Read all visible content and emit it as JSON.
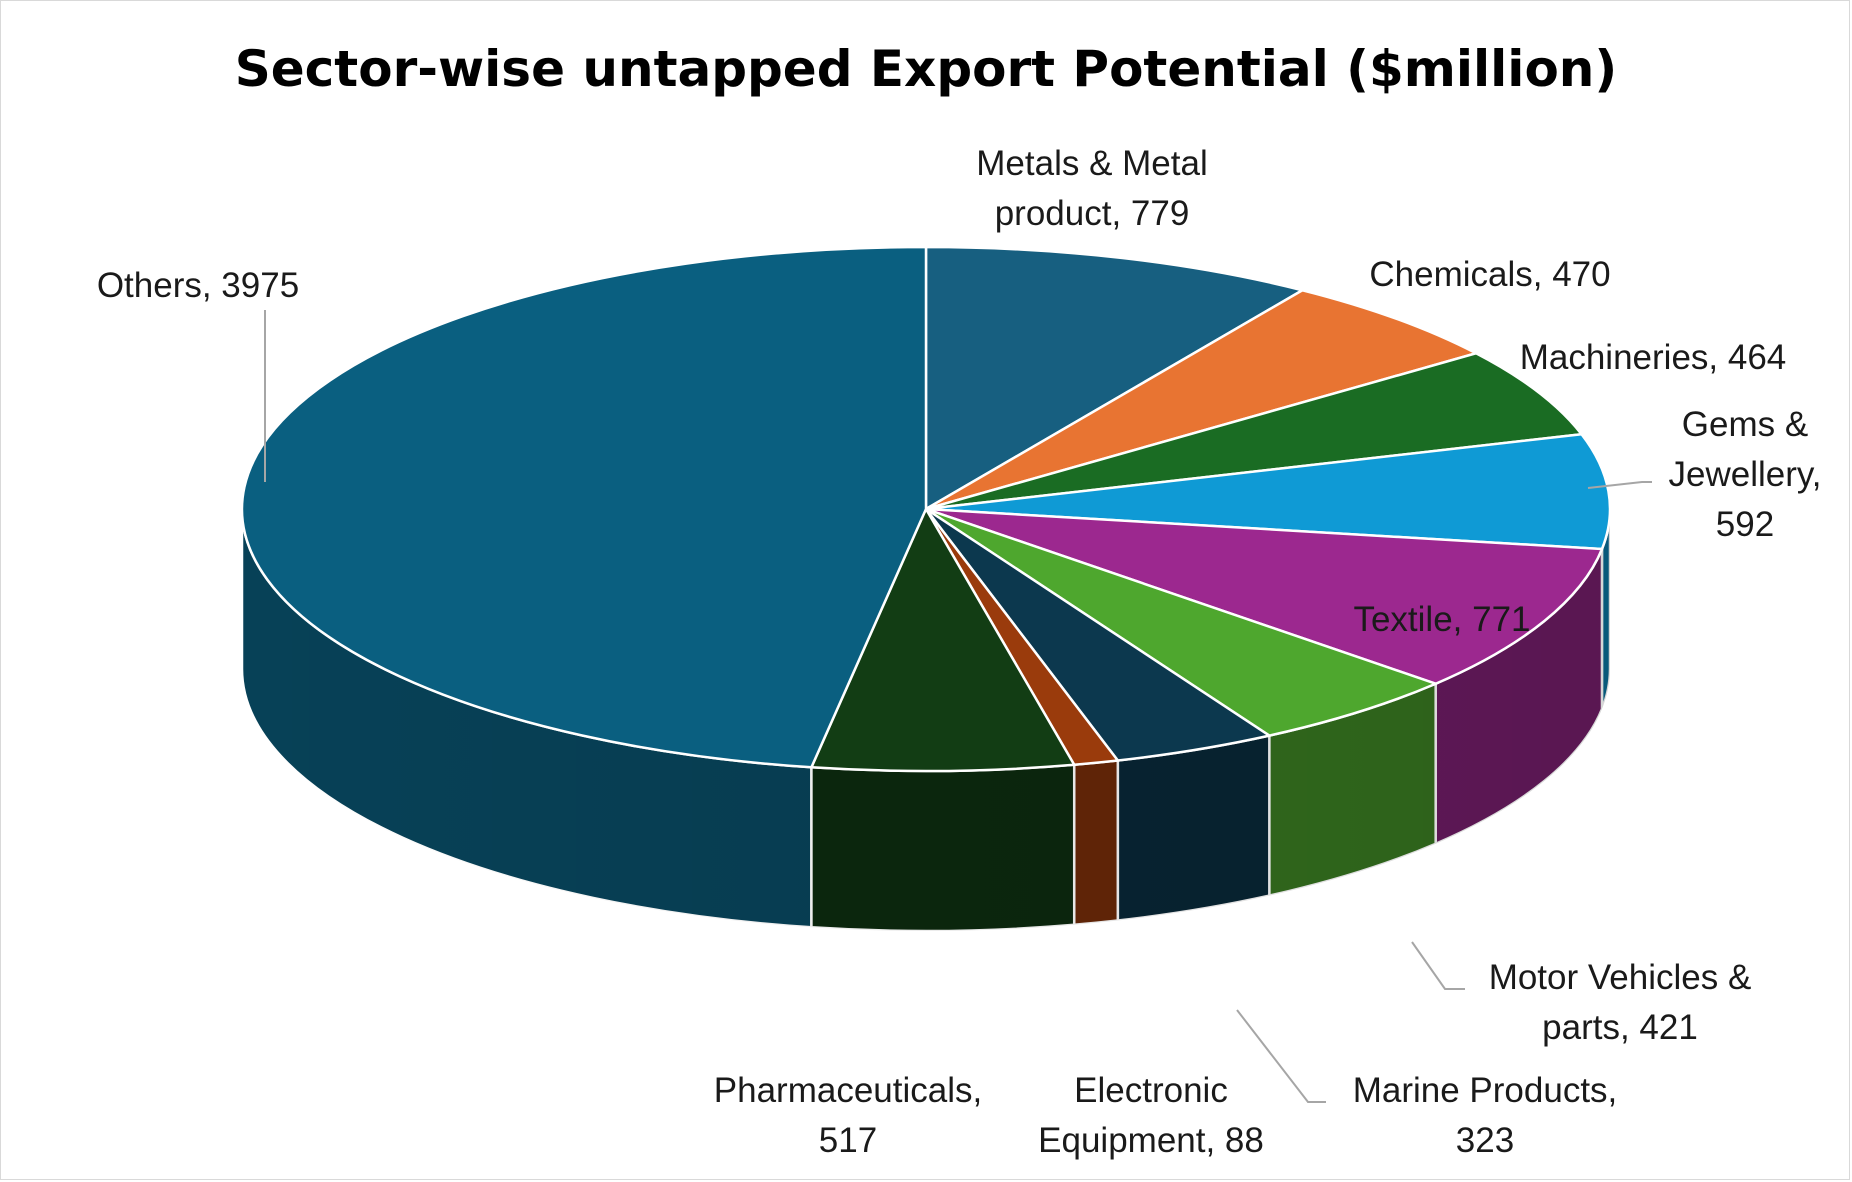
{
  "chart_data": {
    "type": "pie",
    "title": "Sector-wise untapped Export Potential ($million)",
    "slices": [
      {
        "label": "Metals & Metal product",
        "value": 779,
        "color": "#175f80",
        "label_text": "Metals & Metal product, 779"
      },
      {
        "label": "Chemicals",
        "value": 470,
        "color": "#e87432",
        "label_text": "Chemicals, 470"
      },
      {
        "label": "Machineries",
        "value": 464,
        "color": "#1a6c23",
        "label_text": "Machineries, 464"
      },
      {
        "label": "Gems & Jewellery",
        "value": 592,
        "color": "#0f9ad5",
        "label_text": "Gems & Jewellery, 592"
      },
      {
        "label": "Textile",
        "value": 771,
        "color": "#9c288f",
        "label_text": "Textile, 771"
      },
      {
        "label": "Motor Vehicles & parts",
        "value": 421,
        "color": "#4ea72e",
        "label_text": "Motor Vehicles & parts, 421"
      },
      {
        "label": "Marine Products",
        "value": 323,
        "color": "#0c384e",
        "label_text": "Marine Products, 323"
      },
      {
        "label": "Electronic Equipment",
        "value": 88,
        "color": "#9a3b0c",
        "label_text": "Electronic Equipment, 88"
      },
      {
        "label": "Pharmaceuticals",
        "value": 517,
        "color": "#123d14",
        "label_text": "Pharmaceuticals, 517"
      },
      {
        "label": "Others",
        "value": 3975,
        "color": "#0a5f80",
        "label_text": "Others, 3975"
      }
    ]
  }
}
